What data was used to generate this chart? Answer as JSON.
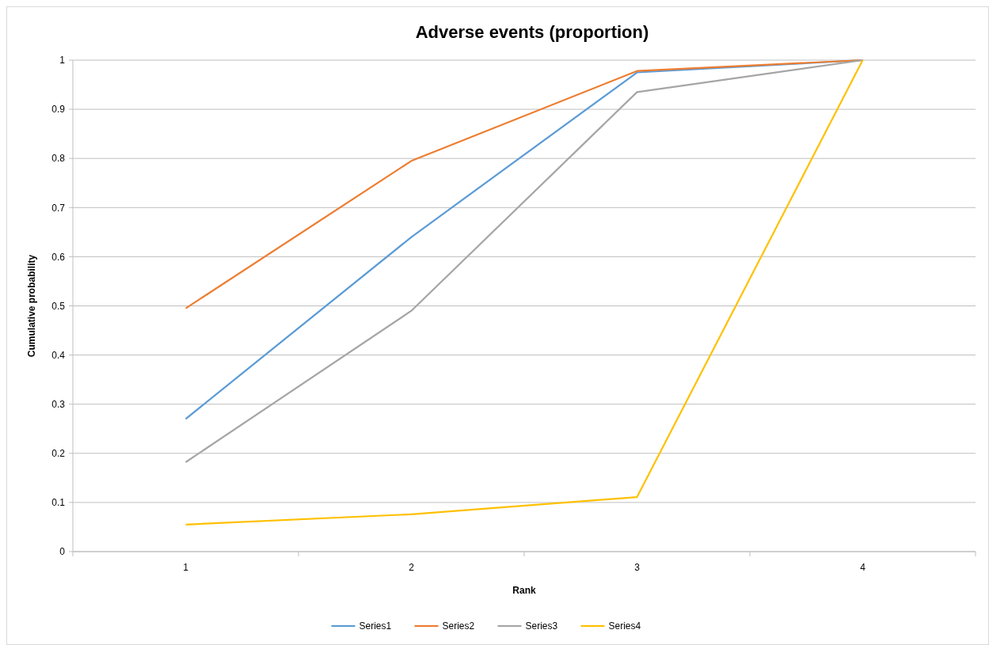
{
  "chart_data": {
    "type": "line",
    "title": "Adverse events (proportion)",
    "xlabel": "Rank",
    "ylabel": "Cumulative probability",
    "categories": [
      "1",
      "2",
      "3",
      "4"
    ],
    "series": [
      {
        "name": "Series1",
        "color": "#5b9bd5",
        "values": [
          0.27,
          0.64,
          0.975,
          1
        ]
      },
      {
        "name": "Series2",
        "color": "#ed7d31",
        "values": [
          0.495,
          0.795,
          0.978,
          1
        ]
      },
      {
        "name": "Series3",
        "color": "#a5a5a5",
        "values": [
          0.182,
          0.49,
          0.935,
          1
        ]
      },
      {
        "name": "Series4",
        "color": "#ffc000",
        "values": [
          0.055,
          0.076,
          0.111,
          1
        ]
      }
    ],
    "ylim": [
      0,
      1
    ],
    "yticks": [
      0,
      0.1,
      0.2,
      0.3,
      0.4,
      0.5,
      0.6,
      0.7,
      0.8,
      0.9,
      1
    ],
    "grid": "y",
    "legend": "bottom",
    "marker": "none",
    "line_style": "solid"
  }
}
